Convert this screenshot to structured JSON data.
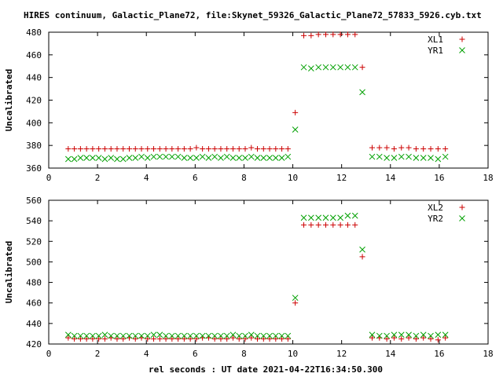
{
  "title": "HIRES continuum, Galactic_Plane72, file:Skynet_59326_Galactic_Plane72_57833_5926.cyb.txt",
  "xlabel": "rel seconds : UT date 2021-04-22T16:34:50.300",
  "colors": {
    "series1": "#cc0000",
    "series2": "#00a000"
  },
  "chart_data": [
    {
      "type": "scatter",
      "ylabel": "Uncalibrated",
      "xlim": [
        0,
        18
      ],
      "ylim": [
        360,
        480
      ],
      "xticks": [
        0,
        2,
        4,
        6,
        8,
        10,
        12,
        14,
        16,
        18
      ],
      "yticks": [
        360,
        380,
        400,
        420,
        440,
        460,
        480
      ],
      "legend": "top-right",
      "x": [
        0.8,
        1.05,
        1.3,
        1.55,
        1.8,
        2.05,
        2.3,
        2.55,
        2.8,
        3.05,
        3.3,
        3.55,
        3.8,
        4.05,
        4.3,
        4.55,
        4.8,
        5.05,
        5.3,
        5.55,
        5.8,
        6.05,
        6.3,
        6.55,
        6.8,
        7.05,
        7.3,
        7.55,
        7.8,
        8.05,
        8.3,
        8.55,
        8.8,
        9.05,
        9.3,
        9.55,
        9.8,
        10.1,
        10.45,
        10.75,
        11.05,
        11.35,
        11.65,
        11.95,
        12.25,
        12.55,
        12.85,
        13.25,
        13.55,
        13.85,
        14.15,
        14.45,
        14.75,
        15.05,
        15.35,
        15.65,
        15.95,
        16.25
      ],
      "series": [
        {
          "name": "XL1",
          "marker": "plus",
          "values": [
            377,
            377,
            377,
            377,
            377,
            377,
            377,
            377,
            377,
            377,
            377,
            377,
            377,
            377,
            377,
            377,
            377,
            377,
            377,
            377,
            377,
            378,
            377,
            377,
            377,
            377,
            377,
            377,
            377,
            377,
            378,
            377,
            377,
            377,
            377,
            377,
            377,
            409,
            477,
            477,
            478,
            478,
            478,
            478,
            478,
            478,
            449,
            378,
            378,
            378,
            377,
            378,
            378,
            377,
            377,
            377,
            377,
            377
          ]
        },
        {
          "name": "YR1",
          "marker": "cross",
          "values": [
            368,
            368,
            369,
            369,
            369,
            369,
            368,
            369,
            368,
            368,
            369,
            369,
            370,
            369,
            370,
            370,
            370,
            370,
            370,
            369,
            369,
            369,
            370,
            369,
            370,
            369,
            370,
            369,
            369,
            369,
            370,
            369,
            369,
            369,
            369,
            369,
            370,
            394,
            449,
            448,
            449,
            449,
            449,
            449,
            449,
            449,
            427,
            370,
            370,
            369,
            369,
            370,
            370,
            369,
            369,
            369,
            368,
            370
          ]
        }
      ]
    },
    {
      "type": "scatter",
      "ylabel": "Uncalibrated",
      "xlim": [
        0,
        18
      ],
      "ylim": [
        420,
        560
      ],
      "xticks": [
        0,
        2,
        4,
        6,
        8,
        10,
        12,
        14,
        16,
        18
      ],
      "yticks": [
        420,
        440,
        460,
        480,
        500,
        520,
        540,
        560
      ],
      "legend": "top-right",
      "x": [
        0.8,
        1.05,
        1.3,
        1.55,
        1.8,
        2.05,
        2.3,
        2.55,
        2.8,
        3.05,
        3.3,
        3.55,
        3.8,
        4.05,
        4.3,
        4.55,
        4.8,
        5.05,
        5.3,
        5.55,
        5.8,
        6.05,
        6.3,
        6.55,
        6.8,
        7.05,
        7.3,
        7.55,
        7.8,
        8.05,
        8.3,
        8.55,
        8.8,
        9.05,
        9.3,
        9.55,
        9.8,
        10.1,
        10.45,
        10.75,
        11.05,
        11.35,
        11.65,
        11.95,
        12.25,
        12.55,
        12.85,
        13.25,
        13.55,
        13.85,
        14.15,
        14.45,
        14.75,
        15.05,
        15.35,
        15.65,
        15.95,
        16.25
      ],
      "series": [
        {
          "name": "XL2",
          "marker": "plus",
          "values": [
            426,
            425,
            425,
            425,
            425,
            425,
            425,
            426,
            425,
            425,
            426,
            425,
            426,
            425,
            425,
            425,
            425,
            425,
            425,
            425,
            425,
            425,
            426,
            426,
            425,
            425,
            425,
            426,
            425,
            425,
            426,
            425,
            425,
            425,
            425,
            425,
            425,
            460,
            536,
            536,
            536,
            536,
            536,
            536,
            536,
            536,
            505,
            426,
            426,
            425,
            426,
            425,
            426,
            425,
            426,
            425,
            424,
            426
          ]
        },
        {
          "name": "YR2",
          "marker": "cross",
          "values": [
            429,
            428,
            428,
            428,
            428,
            428,
            429,
            428,
            428,
            428,
            428,
            428,
            428,
            428,
            429,
            429,
            428,
            428,
            428,
            428,
            428,
            428,
            428,
            428,
            428,
            428,
            428,
            429,
            428,
            428,
            429,
            428,
            428,
            428,
            428,
            428,
            428,
            465,
            543,
            543,
            543,
            543,
            543,
            543,
            545,
            545,
            512,
            429,
            428,
            428,
            429,
            429,
            429,
            428,
            429,
            428,
            429,
            429
          ]
        }
      ]
    }
  ]
}
